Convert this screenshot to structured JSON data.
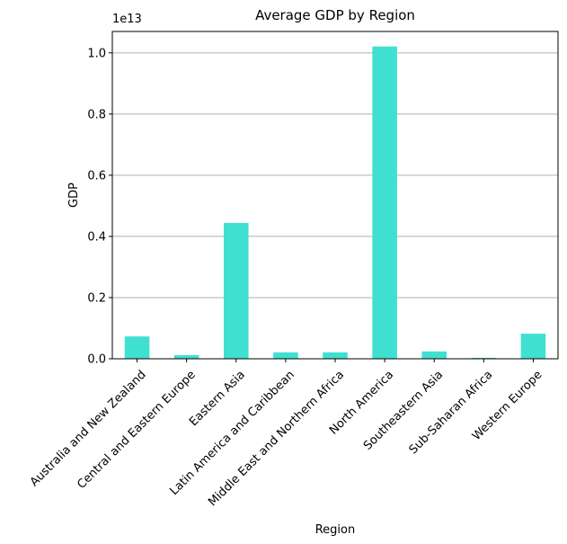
{
  "chart_data": {
    "type": "bar",
    "title": "Average GDP by Region",
    "xlabel": "Region",
    "ylabel": "GDP",
    "y_scale_note": "1e13",
    "categories": [
      "Australia and New Zealand",
      "Central and Eastern Europe",
      "Eastern Asia",
      "Latin America and Caribbean",
      "Middle East and Northern Africa",
      "North America",
      "Southeastern Asia",
      "Sub-Saharan Africa",
      "Western Europe"
    ],
    "values": [
      0.073,
      0.012,
      0.444,
      0.021,
      0.021,
      1.021,
      0.024,
      0.003,
      0.082
    ],
    "value_multiplier": 10000000000000.0,
    "ylim": [
      0,
      1.07
    ],
    "yticks": [
      0.0,
      0.2,
      0.4,
      0.6,
      0.8,
      1.0
    ],
    "ytick_labels": [
      "0.0",
      "0.2",
      "0.4",
      "0.6",
      "0.8",
      "1.0"
    ],
    "grid": "y-major",
    "bar_color": "#40e0d0",
    "grid_color": "#b0b0b0"
  }
}
